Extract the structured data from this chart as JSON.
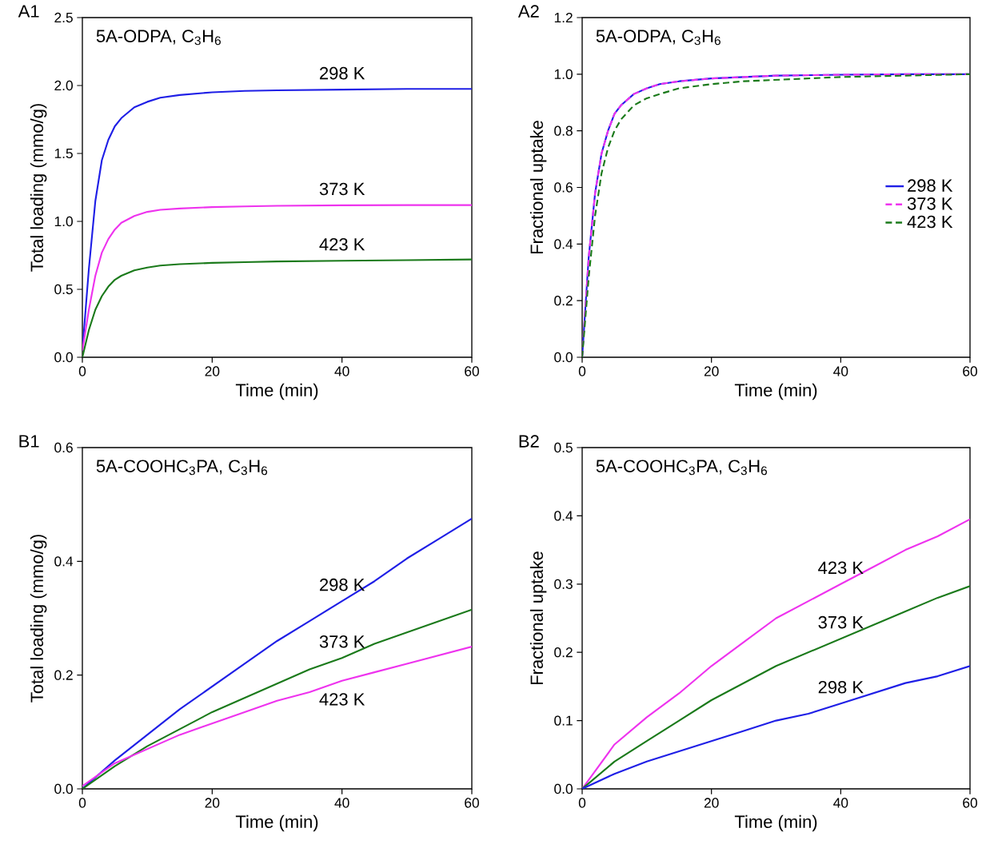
{
  "chart_data": [
    {
      "type": "line",
      "title": "A1",
      "annotations": [
        "5A-ODPA, C$_{3}$H$_{6}$"
      ],
      "xlabel": "Time (min)",
      "ylabel": "Total loading (mmo/g)",
      "xlim": [
        0,
        60
      ],
      "ylim": [
        0,
        2.5
      ],
      "xticks": [
        0,
        20,
        40,
        60
      ],
      "yticks": [
        {
          "value": 0,
          "label": "0.0"
        },
        {
          "value": 0.5,
          "label": "0.5"
        },
        {
          "value": 1,
          "label": "1.0"
        },
        {
          "value": 1.5,
          "label": "1.5"
        },
        {
          "value": 2,
          "label": "2.0"
        },
        {
          "value": 2.5,
          "label": "2.5"
        }
      ],
      "series": [
        {
          "name": "298 K",
          "color": "#1f1fe6",
          "line_style": "solid",
          "x": [
            0,
            1,
            2,
            3,
            4,
            5,
            6,
            8,
            10,
            12,
            15,
            20,
            25,
            30,
            40,
            50,
            60
          ],
          "values": [
            0.05,
            0.65,
            1.15,
            1.45,
            1.6,
            1.7,
            1.76,
            1.84,
            1.88,
            1.91,
            1.93,
            1.95,
            1.96,
            1.965,
            1.97,
            1.975,
            1.975
          ]
        },
        {
          "name": "373 K",
          "color": "#ee33ee",
          "line_style": "solid",
          "x": [
            0,
            1,
            2,
            3,
            4,
            5,
            6,
            8,
            10,
            12,
            15,
            20,
            25,
            30,
            40,
            50,
            60
          ],
          "values": [
            0.05,
            0.35,
            0.6,
            0.77,
            0.87,
            0.94,
            0.99,
            1.04,
            1.07,
            1.085,
            1.095,
            1.105,
            1.11,
            1.115,
            1.118,
            1.12,
            1.12
          ]
        },
        {
          "name": "423 K",
          "color": "#1b7a1b",
          "line_style": "solid",
          "x": [
            0,
            1,
            2,
            3,
            4,
            5,
            6,
            8,
            10,
            12,
            15,
            20,
            25,
            30,
            40,
            50,
            60
          ],
          "values": [
            0,
            0.2,
            0.35,
            0.45,
            0.52,
            0.57,
            0.6,
            0.64,
            0.66,
            0.675,
            0.685,
            0.695,
            0.7,
            0.705,
            0.71,
            0.715,
            0.72
          ]
        }
      ]
    },
    {
      "type": "line",
      "title": "A2",
      "annotations": [
        "5A-ODPA, C$_{3}$H$_{6}$"
      ],
      "xlabel": "Time (min)",
      "ylabel": "Fractional uptake",
      "xlim": [
        0,
        60
      ],
      "ylim": [
        0,
        1.2
      ],
      "xticks": [
        0,
        20,
        40,
        60
      ],
      "yticks": [
        {
          "value": 0,
          "label": "0.0"
        },
        {
          "value": 0.2,
          "label": "0.2"
        },
        {
          "value": 0.4,
          "label": "0.4"
        },
        {
          "value": 0.6,
          "label": "0.6"
        },
        {
          "value": 0.8,
          "label": "0.8"
        },
        {
          "value": 1,
          "label": "1.0"
        },
        {
          "value": 1.2,
          "label": "1.2"
        }
      ],
      "legend": "right",
      "series": [
        {
          "name": "298 K",
          "color": "#1f1fe6",
          "line_style": "solid",
          "x": [
            0,
            1,
            2,
            3,
            4,
            5,
            6,
            8,
            10,
            12,
            15,
            20,
            25,
            30,
            40,
            50,
            60
          ],
          "values": [
            0,
            0.35,
            0.58,
            0.72,
            0.8,
            0.86,
            0.89,
            0.93,
            0.95,
            0.965,
            0.975,
            0.985,
            0.99,
            0.995,
            0.998,
            1.0,
            1.0
          ]
        },
        {
          "name": "373 K",
          "color": "#ee33ee",
          "line_style": "dashed",
          "x": [
            0,
            1,
            2,
            3,
            4,
            5,
            6,
            8,
            10,
            12,
            15,
            20,
            25,
            30,
            40,
            50,
            60
          ],
          "values": [
            0,
            0.35,
            0.58,
            0.72,
            0.8,
            0.86,
            0.89,
            0.93,
            0.95,
            0.965,
            0.975,
            0.985,
            0.99,
            0.995,
            0.998,
            1.0,
            1.0
          ]
        },
        {
          "name": "423 K",
          "color": "#1b7a1b",
          "line_style": "dashed",
          "x": [
            0,
            1,
            2,
            3,
            4,
            5,
            6,
            8,
            10,
            12,
            15,
            20,
            25,
            30,
            40,
            50,
            60
          ],
          "values": [
            0,
            0.28,
            0.5,
            0.65,
            0.74,
            0.8,
            0.84,
            0.89,
            0.915,
            0.93,
            0.95,
            0.965,
            0.975,
            0.98,
            0.99,
            0.995,
            1.0
          ]
        }
      ]
    },
    {
      "type": "line",
      "title": "B1",
      "annotations": [
        "5A-COOHC$_{3}$PA, C$_{3}$H$_{6}$"
      ],
      "xlabel": "Time (min)",
      "ylabel": "Total loading (mmo/g)",
      "xlim": [
        0,
        60
      ],
      "ylim": [
        0,
        0.6
      ],
      "xticks": [
        0,
        20,
        40,
        60
      ],
      "yticks": [
        {
          "value": 0,
          "label": "0.0"
        },
        {
          "value": 0.2,
          "label": "0.2"
        },
        {
          "value": 0.4,
          "label": "0.4"
        },
        {
          "value": 0.6,
          "label": "0.6"
        }
      ],
      "series": [
        {
          "name": "298 K",
          "color": "#1f1fe6",
          "line_style": "solid",
          "x": [
            0,
            5,
            10,
            15,
            20,
            25,
            30,
            35,
            40,
            45,
            50,
            55,
            60
          ],
          "values": [
            0,
            0.05,
            0.095,
            0.14,
            0.18,
            0.22,
            0.26,
            0.295,
            0.33,
            0.365,
            0.405,
            0.44,
            0.475
          ]
        },
        {
          "name": "373 K",
          "color": "#1b7a1b",
          "line_style": "solid",
          "x": [
            0,
            5,
            10,
            15,
            20,
            25,
            30,
            35,
            40,
            45,
            50,
            55,
            60
          ],
          "values": [
            0,
            0.04,
            0.075,
            0.105,
            0.135,
            0.16,
            0.185,
            0.21,
            0.23,
            0.255,
            0.275,
            0.295,
            0.315
          ]
        },
        {
          "name": "423 K",
          "color": "#ee33ee",
          "line_style": "solid",
          "x": [
            0,
            5,
            10,
            15,
            20,
            25,
            30,
            35,
            40,
            45,
            50,
            55,
            60
          ],
          "values": [
            0.005,
            0.045,
            0.07,
            0.095,
            0.115,
            0.135,
            0.155,
            0.17,
            0.19,
            0.205,
            0.22,
            0.235,
            0.25
          ]
        }
      ]
    },
    {
      "type": "line",
      "title": "B2",
      "annotations": [
        "5A-COOHC$_{3}$PA, C$_{3}$H$_{6}$"
      ],
      "xlabel": "Time (min)",
      "ylabel": "Fractional uptake",
      "xlim": [
        0,
        60
      ],
      "ylim": [
        0,
        0.5
      ],
      "xticks": [
        0,
        20,
        40,
        60
      ],
      "yticks": [
        {
          "value": 0,
          "label": "0.0"
        },
        {
          "value": 0.1,
          "label": "0.1"
        },
        {
          "value": 0.2,
          "label": "0.2"
        },
        {
          "value": 0.3,
          "label": "0.3"
        },
        {
          "value": 0.4,
          "label": "0.4"
        },
        {
          "value": 0.5,
          "label": "0.5"
        }
      ],
      "series": [
        {
          "name": "423 K",
          "color": "#ee33ee",
          "line_style": "solid",
          "x": [
            0,
            5,
            10,
            15,
            20,
            25,
            30,
            35,
            40,
            45,
            50,
            55,
            60
          ],
          "values": [
            0,
            0.065,
            0.105,
            0.14,
            0.18,
            0.215,
            0.25,
            0.275,
            0.3,
            0.325,
            0.35,
            0.37,
            0.395
          ]
        },
        {
          "name": "373 K",
          "color": "#1b7a1b",
          "line_style": "solid",
          "x": [
            0,
            5,
            10,
            15,
            20,
            25,
            30,
            35,
            40,
            45,
            50,
            55,
            60
          ],
          "values": [
            0,
            0.04,
            0.07,
            0.1,
            0.13,
            0.155,
            0.18,
            0.2,
            0.22,
            0.24,
            0.26,
            0.28,
            0.297
          ]
        },
        {
          "name": "298 K",
          "color": "#1f1fe6",
          "line_style": "solid",
          "x": [
            0,
            5,
            10,
            15,
            20,
            25,
            30,
            35,
            40,
            45,
            50,
            55,
            60
          ],
          "values": [
            0,
            0.022,
            0.04,
            0.055,
            0.07,
            0.085,
            0.1,
            0.11,
            0.125,
            0.14,
            0.155,
            0.165,
            0.18
          ]
        }
      ]
    }
  ]
}
